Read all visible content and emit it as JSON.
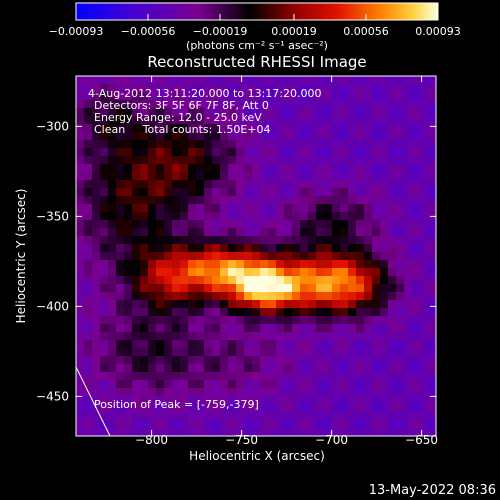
{
  "chart_data": {
    "type": "heatmap",
    "title": "Reconstructed RHESSI Image",
    "xlabel": "Heliocentric X (arcsec)",
    "ylabel": "Heliocentric Y (arcsec)",
    "xlim": [
      -842,
      -642
    ],
    "ylim": [
      -472,
      -272
    ],
    "xticks": [
      -800,
      -750,
      -700,
      -650
    ],
    "yticks": [
      -300,
      -350,
      -400,
      -450
    ],
    "colorbar": {
      "ticks": [
        -0.00093,
        -0.00056,
        -0.00019,
        0.00019,
        0.00056,
        0.00093
      ],
      "tick_labels": [
        "-0.00093",
        "-0.00056",
        "-0.00019",
        "0.00019",
        "0.00056",
        "0.00093"
      ],
      "label": "(photons cm⁻² s⁻¹ asec⁻²)",
      "range": [
        -0.00093,
        0.00093
      ]
    },
    "annotations": [
      "4-Aug-2012 13:11:20.000 to 13:17:20.000",
      "Detectors: 3F 5F 6F 7F 8F, Att 0",
      "Energy Range: 12.0 - 25.0 keV",
      "Clean     Total counts: 1.50E+04",
      "Position of Peak = [-759,-379]"
    ],
    "peak": {
      "x": -759,
      "y": -379
    },
    "sources": [
      {
        "x": -759,
        "y": -379,
        "amp": 0.00093,
        "sx": 18,
        "sy": 10
      },
      {
        "x": -738,
        "y": -391,
        "amp": 0.00088,
        "sx": 14,
        "sy": 9
      },
      {
        "x": -712,
        "y": -386,
        "amp": 0.00072,
        "sx": 22,
        "sy": 12
      },
      {
        "x": -790,
        "y": -385,
        "amp": 0.00058,
        "sx": 15,
        "sy": 12
      },
      {
        "x": -690,
        "y": -388,
        "amp": 0.00062,
        "sx": 16,
        "sy": 12
      },
      {
        "x": -812,
        "y": -340,
        "amp": 0.00045,
        "sx": 22,
        "sy": 30
      },
      {
        "x": -778,
        "y": -318,
        "amp": 0.0004,
        "sx": 20,
        "sy": 18
      },
      {
        "x": -700,
        "y": -352,
        "amp": 0.00035,
        "sx": 18,
        "sy": 12
      },
      {
        "x": -805,
        "y": -425,
        "amp": 0.0003,
        "sx": 22,
        "sy": 18
      },
      {
        "x": -755,
        "y": -430,
        "amp": 0.0002,
        "sx": 25,
        "sy": 15
      },
      {
        "x": -825,
        "y": -295,
        "amp": 0.00025,
        "sx": 14,
        "sy": 12
      }
    ]
  },
  "footer": {
    "timestamp": "13-May-2022 08:36"
  }
}
